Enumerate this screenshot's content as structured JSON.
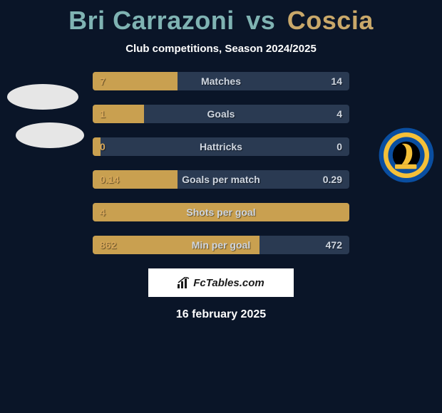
{
  "title": {
    "left": "Bri Carrazoni",
    "vs": "vs",
    "right": "Coscia",
    "left_color": "#7fb3b3",
    "right_color": "#c9a86a"
  },
  "subtitle": "Club competitions, Season 2024/2025",
  "colors": {
    "background": "#0a1528",
    "bar_bg": "#2a3a52",
    "bar_fill": "#c9a050",
    "left_value_color": "#d9a85a",
    "right_value_color": "#cfd6e0",
    "label_color": "#cfd6e0",
    "subtitle_color": "#ffffff"
  },
  "bars": [
    {
      "label": "Matches",
      "left": "7",
      "right": "14",
      "fill_pct": 33
    },
    {
      "label": "Goals",
      "left": "1",
      "right": "4",
      "fill_pct": 20
    },
    {
      "label": "Hattricks",
      "left": "0",
      "right": "0",
      "fill_pct": 3
    },
    {
      "label": "Goals per match",
      "left": "0.14",
      "right": "0.29",
      "fill_pct": 33
    },
    {
      "label": "Shots per goal",
      "left": "4",
      "right": "",
      "fill_pct": 100
    },
    {
      "label": "Min per goal",
      "left": "862",
      "right": "472",
      "fill_pct": 65
    }
  ],
  "watermark": "FcTables.com",
  "date": "16 february 2025",
  "badge_right": {
    "outer": "#0a4ea0",
    "stripe": "#f5c038",
    "inner_bg": "#000000"
  }
}
